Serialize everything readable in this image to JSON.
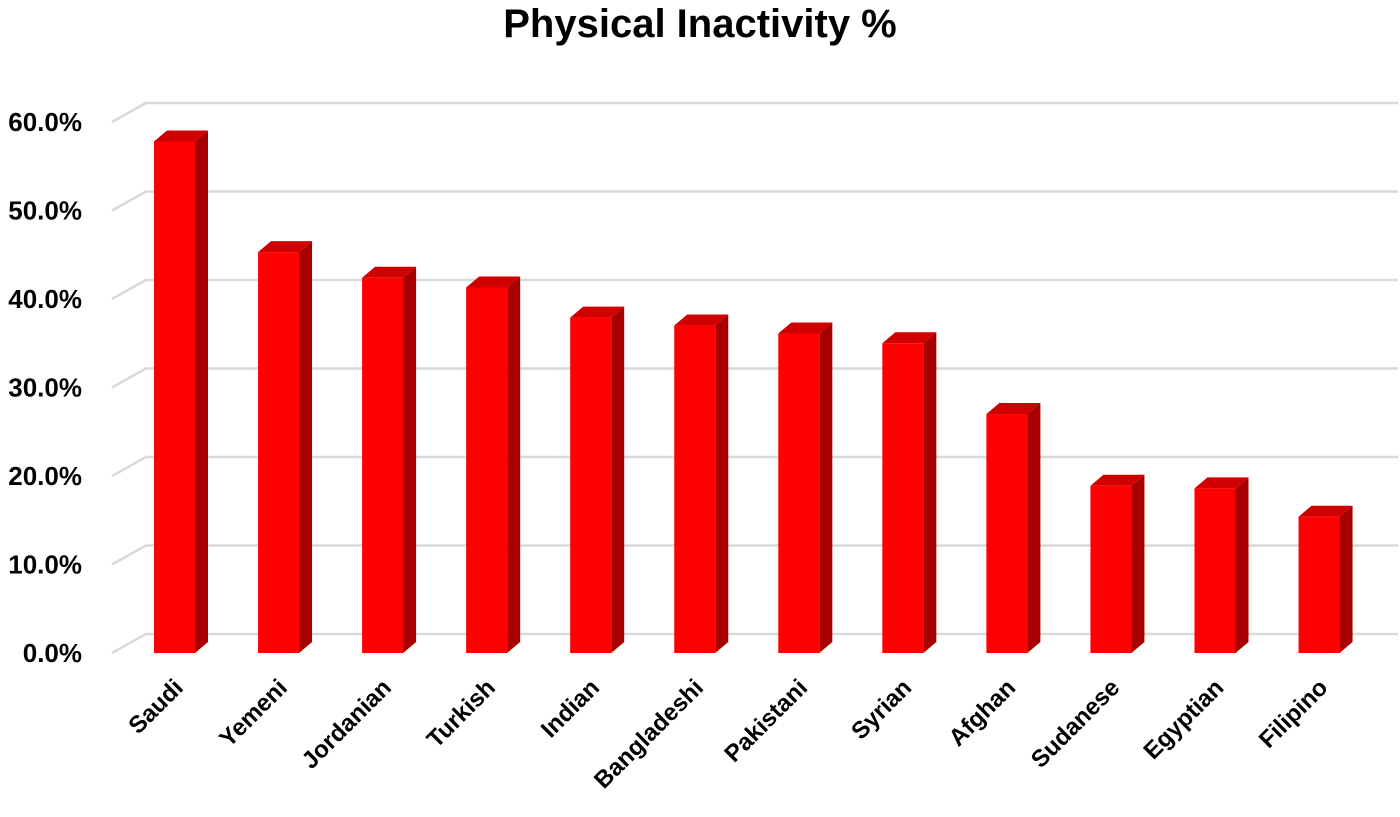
{
  "chart_data": {
    "type": "bar",
    "title": "Physical Inactivity %",
    "categories": [
      "Saudi",
      "Yemeni",
      "Jordanian",
      "Turkish",
      "Indian",
      "Bangladeshi",
      "Pakistani",
      "Syrian",
      "Afghan",
      "Sudanese",
      "Egyptian",
      "Filipino"
    ],
    "values": [
      57.8,
      45.3,
      42.4,
      41.3,
      37.9,
      37.0,
      36.1,
      35.0,
      27.0,
      18.9,
      18.6,
      15.4
    ],
    "yticks": [
      "0.0%",
      "10.0%",
      "20.0%",
      "30.0%",
      "40.0%",
      "50.0%",
      "60.0%"
    ],
    "ylim": [
      0,
      60
    ],
    "grid": true,
    "style": "3d-column",
    "colors": {
      "bar_front": "#ff0000",
      "bar_side": "#a80000",
      "bar_top": "#d00000",
      "gridline": "#d9d9d9"
    }
  }
}
